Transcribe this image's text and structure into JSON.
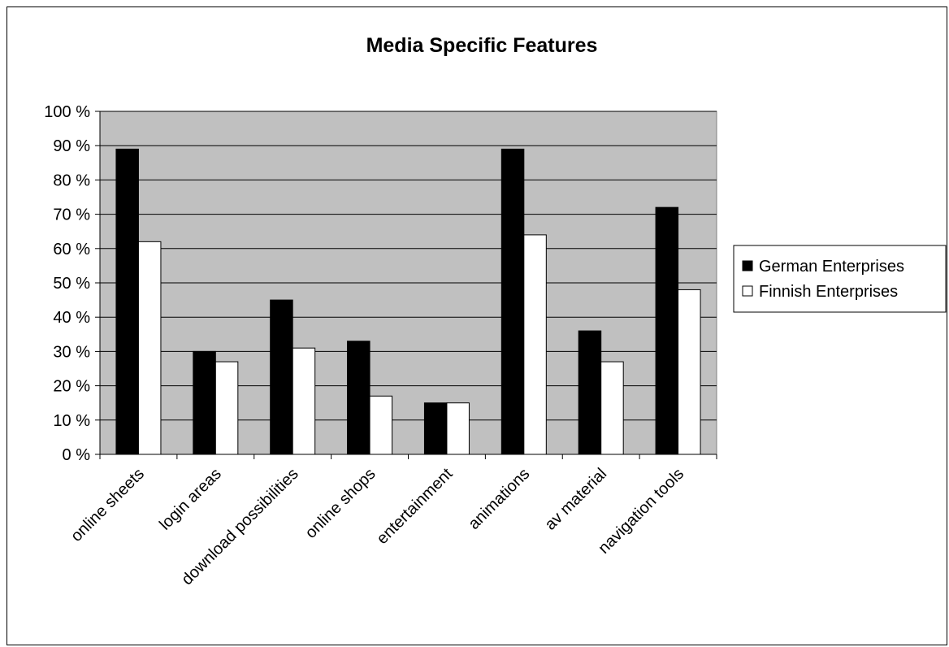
{
  "chart_data": {
    "type": "bar",
    "title": "Media Specific Features",
    "xlabel": "",
    "ylabel": "",
    "categories": [
      "online sheets",
      "login areas",
      "download possibilities",
      "online shops",
      "entertainment",
      "animations",
      "av material",
      "navigation tools"
    ],
    "series": [
      {
        "name": "German Enterprises",
        "values": [
          89,
          30,
          45,
          33,
          15,
          89,
          36,
          72
        ],
        "color": "#000000"
      },
      {
        "name": "Finnish Enterprises",
        "values": [
          62,
          27,
          31,
          17,
          15,
          64,
          27,
          48
        ],
        "color": "#ffffff"
      }
    ],
    "ylim": [
      0,
      100
    ],
    "yticks": [
      0,
      10,
      20,
      30,
      40,
      50,
      60,
      70,
      80,
      90,
      100
    ],
    "ytick_labels": [
      "0 %",
      "10 %",
      "20 %",
      "30 %",
      "40 %",
      "50 %",
      "60 %",
      "70 %",
      "80 %",
      "90 %",
      "100 %"
    ],
    "grid": true,
    "plot_background": "#c0c0c0",
    "legend_position": "right"
  }
}
